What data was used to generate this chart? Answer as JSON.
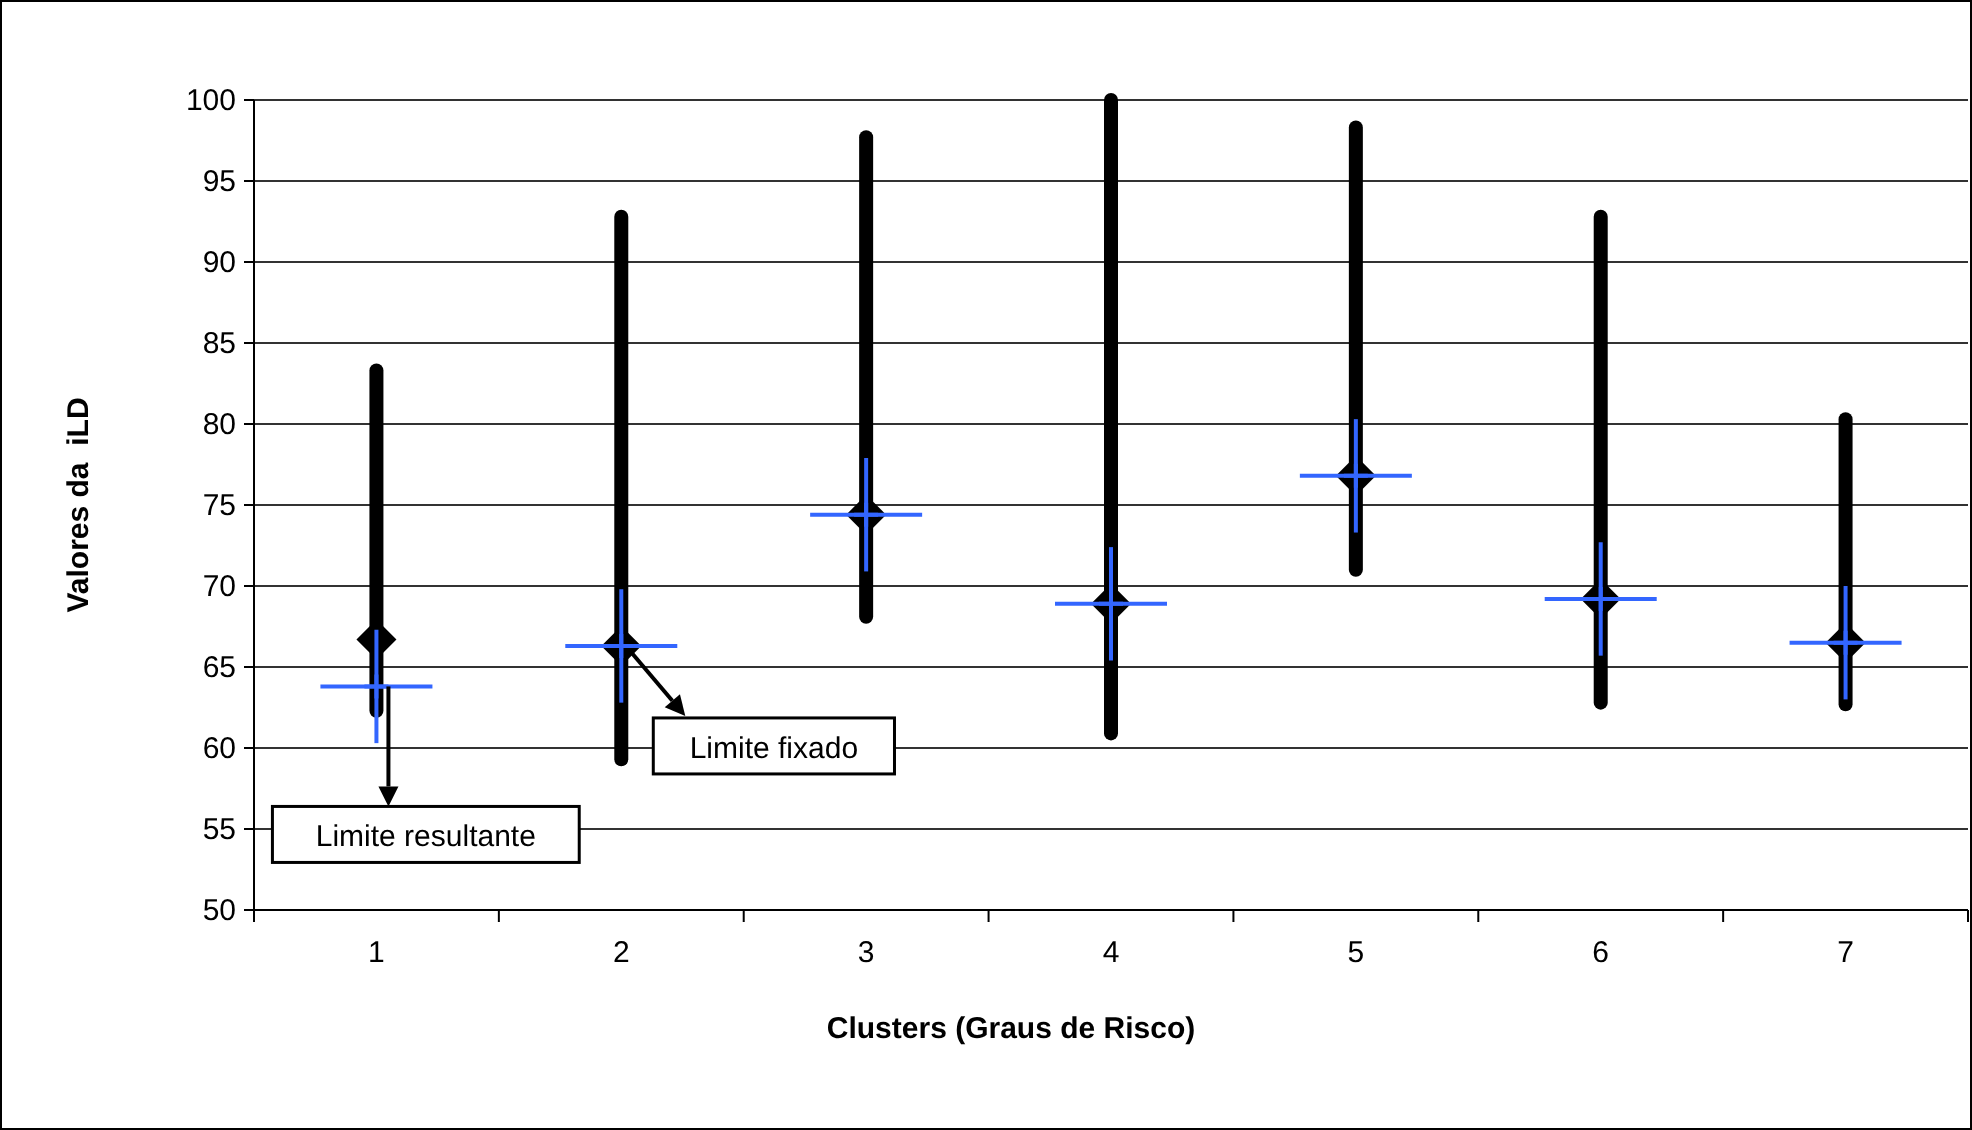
{
  "chart_data": {
    "type": "scatter",
    "xlabel": "Clusters (Graus de Risco)",
    "ylabel": "Valores da  iLD",
    "categories": [
      "1",
      "2",
      "3",
      "4",
      "5",
      "6",
      "7"
    ],
    "series": [
      {
        "color": "#000000",
        "marker": "diamond",
        "values": [
          66.7,
          66.3,
          74.4,
          68.9,
          76.8,
          69.2,
          66.5
        ],
        "errors": [
          [
            62.3,
            83.3
          ],
          [
            59.3,
            92.8
          ],
          [
            68.1,
            97.7
          ],
          [
            60.9,
            100
          ],
          [
            71,
            98.3
          ],
          [
            62.8,
            92.8
          ],
          [
            62.7,
            80.3
          ]
        ]
      },
      {
        "color": "#3366ff",
        "marker": "cross",
        "values": [
          63.8,
          66.3,
          74.4,
          68.9,
          76.8,
          69.2,
          66.5
        ],
        "errors": [
          3.5,
          3.5,
          3.5,
          3.5,
          3.5,
          3.5,
          3.5
        ]
      }
    ],
    "ylim": [
      50,
      100
    ],
    "yticks": [
      50,
      55,
      60,
      65,
      70,
      75,
      80,
      85,
      90,
      95,
      100
    ],
    "grid": "y",
    "annotations": [
      {
        "text": "Limite resultante",
        "x": "1",
        "y": 63.8
      },
      {
        "text": "Limite fixado",
        "x": "2",
        "y": 66.3
      }
    ]
  }
}
